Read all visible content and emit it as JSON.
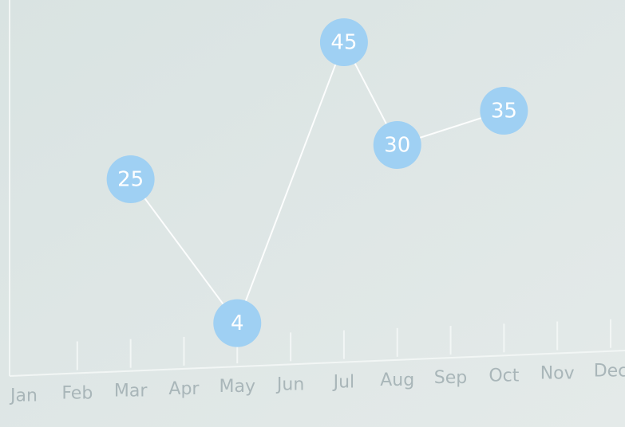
{
  "chart_data": {
    "type": "line",
    "categories": [
      "Jan",
      "Feb",
      "Mar",
      "Apr",
      "May",
      "Jun",
      "Jul",
      "Aug",
      "Sep",
      "Oct",
      "Nov",
      "Dec"
    ],
    "points": [
      {
        "x": "Mar",
        "value": 25
      },
      {
        "x": "May",
        "value": 4
      },
      {
        "x": "Jul",
        "value": 45
      },
      {
        "x": "Aug",
        "value": 30
      },
      {
        "x": "Oct",
        "value": 35
      }
    ],
    "color": "#9fd0f3",
    "line_color": "#ffffff"
  }
}
